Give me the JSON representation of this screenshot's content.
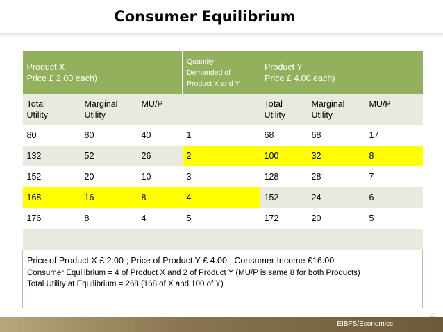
{
  "title": "Consumer Equilibrium",
  "header": {
    "product_x_line1": "Product X",
    "product_x_line2": "Price £ 2.00 each)",
    "quantity_line1": "Quantity",
    "quantity_line2": "Demanded of",
    "quantity_line3": "Product X and Y",
    "product_y_line1": "Product Y",
    "product_y_line2": "Price £ 4.00 each)"
  },
  "subheader": {
    "x_total": [
      "Total",
      "Utility"
    ],
    "x_marginal": [
      "Marginal",
      "Utility"
    ],
    "x_mup": "MU/P",
    "y_total": [
      "Total",
      "Utility"
    ],
    "y_marginal": [
      "Marginal",
      "Utility"
    ],
    "y_mup": "MU/P"
  },
  "rows": [
    {
      "xtu": "80",
      "xmu": "80",
      "xmup": "40",
      "qty": "1",
      "ytu": "68",
      "ymu": "68",
      "ymup": "17"
    },
    {
      "xtu": "132",
      "xmu": "52",
      "xmup": "26",
      "qty": "2",
      "ytu": "100",
      "ymu": "32",
      "ymup": "8"
    },
    {
      "xtu": "152",
      "xmu": "20",
      "xmup": "10",
      "qty": "3",
      "ytu": "128",
      "ymu": "28",
      "ymup": "7"
    },
    {
      "xtu": "168",
      "xmu": "16",
      "xmup": "8",
      "qty": "4",
      "ytu": "152",
      "ymu": "24",
      "ymup": "6"
    },
    {
      "xtu": "176",
      "xmu": "8",
      "xmup": "4",
      "qty": "5",
      "ytu": "172",
      "ymu": "20",
      "ymup": "5"
    }
  ],
  "highlight_color": "#ffff00",
  "header_color": "#93b15c",
  "notes": {
    "line1": "Price of Product X £ 2.00 ;     Price of Product Y £ 4.00 ;      Consumer Income £16.00",
    "line2": "Consumer Equilibrium  = 4 of Product X and 2 of Product Y   (MU/P is same 8 for both Products)",
    "line3": "Total Utility at Equilibrium = 268 (168 of X and 100 of Y)"
  },
  "footer": "EIBFS/Economics",
  "page_number": "11"
}
